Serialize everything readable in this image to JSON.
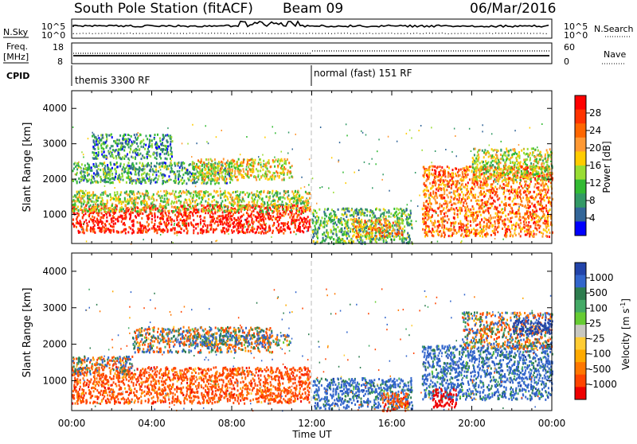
{
  "header": {
    "station": "South Pole Station (fitACF)",
    "beam": "Beam 09",
    "date": "06/Mar/2016"
  },
  "side_labels": {
    "nsky": "N.Sky",
    "nsearch": "N.Search",
    "freq": "Freq.",
    "freq_unit": "[MHz]",
    "nave": "Nave",
    "cpid": "CPID"
  },
  "small_axes": {
    "noise_left_ticks": [
      "10^5",
      "10^0"
    ],
    "noise_right_ticks": [
      "10^5",
      "10^0"
    ],
    "freq_left_ticks": [
      "18",
      "8"
    ],
    "nave_right_ticks": [
      "60",
      "0"
    ]
  },
  "cpid": {
    "segment1": "themis 3300 RF",
    "segment2": "normal (fast) 151 RF"
  },
  "axes": {
    "ylabel": "Slant Range [km]",
    "yticks": [
      "1000",
      "2000",
      "3000",
      "4000"
    ],
    "xticks": [
      "00:00",
      "04:00",
      "08:00",
      "12:00",
      "16:00",
      "20:00",
      "00:00"
    ],
    "xlabel": "Time UT"
  },
  "colorbars": {
    "power": {
      "label": "Power [dB]",
      "ticks": [
        "28",
        "24",
        "20",
        "16",
        "12",
        "8",
        "4"
      ],
      "colors_top_to_bottom": [
        "#ff0000",
        "#ff3300",
        "#ff6600",
        "#ff9933",
        "#ffcc00",
        "#99dd33",
        "#33bb33",
        "#339966",
        "#336699",
        "#0000ff"
      ]
    },
    "velocity": {
      "label": "Velocity [m s",
      "label_sup": "-1",
      "label_end": "]",
      "ticks": [
        "1000",
        "500",
        "100",
        "25",
        "-25",
        "-100",
        "-500",
        "-1000"
      ],
      "colors_top_to_bottom": [
        "#2244aa",
        "#3366cc",
        "#2e7d4f",
        "#44aa66",
        "#66cc33",
        "#c8c8c0",
        "#ffcc33",
        "#ffaa00",
        "#ff7700",
        "#ff4400",
        "#ee0000"
      ]
    }
  },
  "chart_data": [
    {
      "type": "heatmap",
      "name": "Power",
      "xlim_hours": [
        0,
        24
      ],
      "ylim_km": [
        180,
        4500
      ],
      "colorbar_range_db": [
        0,
        30
      ],
      "blobs": [
        {
          "t0": 0,
          "t1": 11.9,
          "r0": 500,
          "r1": 1300,
          "value": 28
        },
        {
          "t0": 0,
          "t1": 11.9,
          "r0": 1100,
          "r1": 1700,
          "value": 14
        },
        {
          "t0": 0,
          "t1": 8,
          "r0": 1900,
          "r1": 2500,
          "value": 9
        },
        {
          "t0": 1,
          "t1": 5,
          "r0": 2600,
          "r1": 3300,
          "value": 8
        },
        {
          "t0": 6,
          "t1": 11,
          "r0": 2000,
          "r1": 2600,
          "value": 16
        },
        {
          "t0": 12,
          "t1": 17,
          "r0": 200,
          "r1": 1200,
          "value": 10
        },
        {
          "t0": 14,
          "t1": 16.5,
          "r0": 400,
          "r1": 900,
          "value": 20
        },
        {
          "t0": 17.5,
          "t1": 24,
          "r0": 400,
          "r1": 2400,
          "value": 22
        },
        {
          "t0": 20,
          "t1": 24,
          "r0": 2000,
          "r1": 2900,
          "value": 14
        }
      ]
    },
    {
      "type": "heatmap",
      "name": "Velocity",
      "xlim_hours": [
        0,
        24
      ],
      "ylim_km": [
        180,
        4500
      ],
      "colorbar_range_ms": [
        -1000,
        1000
      ],
      "blobs": [
        {
          "t0": 0,
          "t1": 11.9,
          "r0": 400,
          "r1": 1400,
          "value": -150
        },
        {
          "t0": 0,
          "t1": 3,
          "r0": 1200,
          "r1": 1700,
          "value": 0
        },
        {
          "t0": 3,
          "t1": 10,
          "r0": 1800,
          "r1": 2500,
          "value": 0
        },
        {
          "t0": 6,
          "t1": 11,
          "r0": 2000,
          "r1": 2300,
          "value": 80
        },
        {
          "t0": 12,
          "t1": 17,
          "r0": 250,
          "r1": 1100,
          "value": 150
        },
        {
          "t0": 15.5,
          "t1": 16.8,
          "r0": 200,
          "r1": 700,
          "value": -150
        },
        {
          "t0": 17.5,
          "t1": 24,
          "r0": 500,
          "r1": 2000,
          "value": 150
        },
        {
          "t0": 19.5,
          "t1": 24,
          "r0": 1900,
          "r1": 2900,
          "value": 0
        },
        {
          "t0": 22,
          "t1": 24,
          "r0": 2300,
          "r1": 2700,
          "value": 800
        },
        {
          "t0": 18,
          "t1": 19.2,
          "r0": 300,
          "r1": 800,
          "value": -700
        }
      ]
    }
  ]
}
